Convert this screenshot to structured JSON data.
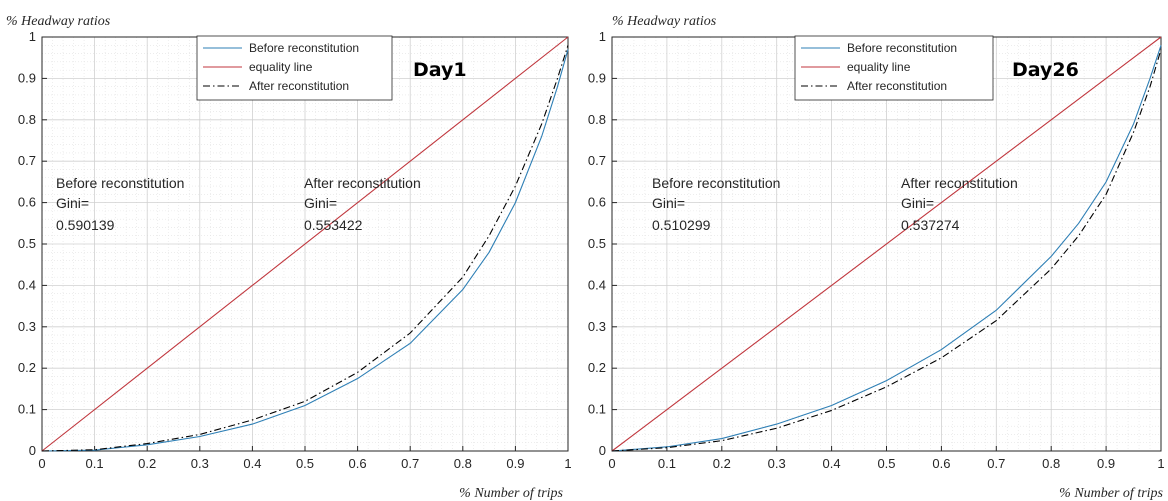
{
  "chart_data": [
    {
      "type": "line",
      "panel_label": "Day1",
      "ylabel": "% Headway ratios",
      "xlabel": "% Number of trips",
      "xlim": [
        0,
        1
      ],
      "ylim": [
        0,
        1
      ],
      "xticks": [
        "0",
        "0.1",
        "0.2",
        "0.3",
        "0.4",
        "0.5",
        "0.6",
        "0.7",
        "0.8",
        "0.9",
        "1"
      ],
      "yticks": [
        "0",
        "0.1",
        "0.2",
        "0.3",
        "0.4",
        "0.5",
        "0.6",
        "0.7",
        "0.8",
        "0.9",
        "1"
      ],
      "grid": true,
      "legend_position": "top-center",
      "series": [
        {
          "name": "Before reconstitution",
          "color": "#2e7fb5",
          "style": "solid",
          "x": [
            0,
            0.1,
            0.2,
            0.3,
            0.4,
            0.5,
            0.6,
            0.7,
            0.8,
            0.85,
            0.9,
            0.95,
            0.98,
            1
          ],
          "y": [
            0,
            0.002,
            0.015,
            0.035,
            0.065,
            0.11,
            0.175,
            0.26,
            0.39,
            0.48,
            0.6,
            0.76,
            0.88,
            0.97
          ]
        },
        {
          "name": "equality line",
          "color": "#c0363d",
          "style": "solid",
          "x": [
            0,
            1
          ],
          "y": [
            0,
            1
          ]
        },
        {
          "name": "After reconstitution",
          "color": "#000000",
          "style": "dashdot",
          "x": [
            0,
            0.1,
            0.2,
            0.3,
            0.4,
            0.5,
            0.6,
            0.7,
            0.8,
            0.85,
            0.9,
            0.95,
            0.98,
            1
          ],
          "y": [
            0,
            0.003,
            0.018,
            0.04,
            0.075,
            0.12,
            0.19,
            0.285,
            0.42,
            0.52,
            0.64,
            0.79,
            0.9,
            0.98
          ]
        }
      ],
      "annotations": {
        "before": {
          "line1": "Before reconstitution",
          "line2": "Gini=",
          "line3": "0.590139"
        },
        "after": {
          "line1": "After reconstitution",
          "line2": "Gini=",
          "line3": "0.553422"
        }
      }
    },
    {
      "type": "line",
      "panel_label": "Day26",
      "ylabel": "% Headway ratios",
      "xlabel": "% Number of trips",
      "xlim": [
        0,
        1
      ],
      "ylim": [
        0,
        1
      ],
      "xticks": [
        "0",
        "0.1",
        "0.2",
        "0.3",
        "0.4",
        "0.5",
        "0.6",
        "0.7",
        "0.8",
        "0.9",
        "1"
      ],
      "yticks": [
        "0",
        "0.1",
        "0.2",
        "0.3",
        "0.4",
        "0.5",
        "0.6",
        "0.7",
        "0.8",
        "0.9",
        "1"
      ],
      "grid": true,
      "legend_position": "top-center",
      "series": [
        {
          "name": "Before reconstitution",
          "color": "#2e7fb5",
          "style": "solid",
          "x": [
            0,
            0.1,
            0.2,
            0.3,
            0.4,
            0.5,
            0.6,
            0.7,
            0.8,
            0.85,
            0.9,
            0.95,
            0.98,
            1
          ],
          "y": [
            0,
            0.01,
            0.03,
            0.065,
            0.11,
            0.17,
            0.245,
            0.34,
            0.47,
            0.55,
            0.65,
            0.79,
            0.9,
            0.98
          ]
        },
        {
          "name": "equality line",
          "color": "#c0363d",
          "style": "solid",
          "x": [
            0,
            1
          ],
          "y": [
            0,
            1
          ]
        },
        {
          "name": "After reconstitution",
          "color": "#000000",
          "style": "dashdot",
          "x": [
            0,
            0.1,
            0.2,
            0.3,
            0.4,
            0.5,
            0.6,
            0.7,
            0.8,
            0.85,
            0.9,
            0.95,
            0.98,
            1
          ],
          "y": [
            0,
            0.008,
            0.025,
            0.055,
            0.098,
            0.155,
            0.225,
            0.315,
            0.44,
            0.52,
            0.62,
            0.77,
            0.88,
            0.97
          ]
        }
      ],
      "annotations": {
        "before": {
          "line1": "Before reconstitution",
          "line2": "Gini=",
          "line3": "0.510299"
        },
        "after": {
          "line1": "After reconstitution",
          "line2": "Gini=",
          "line3": "0.537274"
        }
      }
    }
  ]
}
